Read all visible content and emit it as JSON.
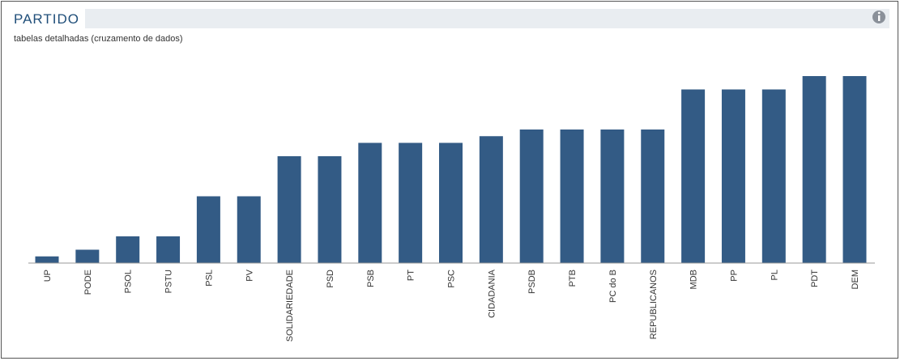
{
  "chart_data": {
    "type": "bar",
    "title": "PARTIDO",
    "subtitle": "tabelas detalhadas (cruzamento de dados)",
    "categories": [
      "UP",
      "PODE",
      "PSOL",
      "PSTU",
      "PSL",
      "PV",
      "SOLIDARIEDADE",
      "PSD",
      "PSB",
      "PT",
      "PSC",
      "CIDADANIA",
      "PSDB",
      "PTB",
      "PC do B",
      "REPUBLICANOS",
      "MDB",
      "PP",
      "PL",
      "PDT",
      "DEM"
    ],
    "values": [
      1,
      2,
      4,
      4,
      10,
      10,
      16,
      16,
      18,
      18,
      18,
      19,
      20,
      20,
      20,
      20,
      26,
      26,
      26,
      28,
      28
    ],
    "color": "#335b85",
    "ylim": [
      0,
      30
    ]
  }
}
